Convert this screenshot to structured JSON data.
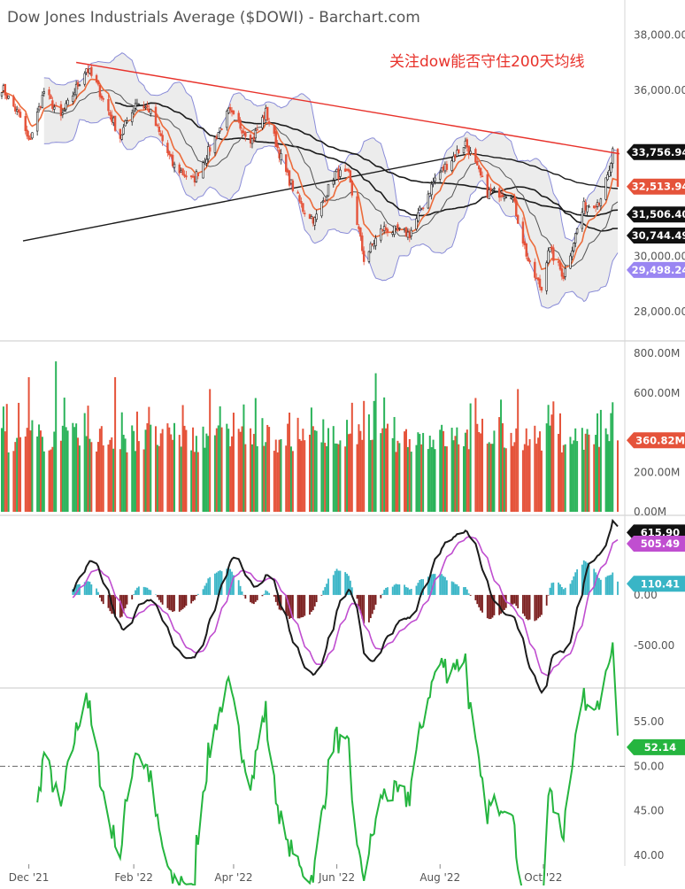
{
  "chart_title": "Dow Jones Industrials Average ($DOWI) - Barchart.com",
  "annotation": "关注dow能否守住200天均线",
  "x_tick_labels": [
    "Dec '21",
    "Feb '22",
    "Apr '22",
    "Jun '22",
    "Aug '22",
    "Oct '22"
  ],
  "colors": {
    "up": "#2bb35a",
    "down": "#e5533a",
    "trendline": "#e8322b",
    "ma_black": "#1b1b1b",
    "ma_orange": "#ec6b3b",
    "band": "#8a8cd8",
    "macd_signal": "#c04ed0",
    "macd_hist_pos": "#39b5c6",
    "macd_hist_neg": "#7a1d1d",
    "rsi": "#25b53f"
  },
  "chart_data": [
    {
      "type": "candlestick",
      "name": "price",
      "y_ticks": [
        "38,000.00",
        "36,000.00",
        "30,000.00",
        "28,000.00"
      ],
      "ylim": [
        27000,
        39000
      ],
      "badges": [
        {
          "label": "33,756.94",
          "value": 33756.94,
          "color": "#111111"
        },
        {
          "label": "32,513.94",
          "value": 32513.94,
          "color": "#e5533a"
        },
        {
          "label": "31,506.40",
          "value": 31506.4,
          "color": "#111111"
        },
        {
          "label": "30,744.49",
          "value": 30744.49,
          "color": "#111111"
        },
        {
          "label": "29,498.24",
          "value": 29498.24,
          "color": "#9a86f2"
        }
      ],
      "trendline": [
        {
          "x": "2021-12-29",
          "y": 37000
        },
        {
          "x": "2022-11-15",
          "y": 33700
        }
      ],
      "anchors": [
        [
          "2021-11-15",
          36100
        ],
        [
          "2021-11-26",
          35000
        ],
        [
          "2021-12-01",
          34100
        ],
        [
          "2021-12-10",
          35950
        ],
        [
          "2021-12-20",
          35000
        ],
        [
          "2022-01-04",
          36800
        ],
        [
          "2022-01-10",
          36200
        ],
        [
          "2022-01-24",
          34300
        ],
        [
          "2022-02-02",
          35600
        ],
        [
          "2022-02-10",
          35300
        ],
        [
          "2022-02-24",
          33300
        ],
        [
          "2022-03-08",
          32700
        ],
        [
          "2022-03-29",
          35200
        ],
        [
          "2022-04-12",
          34200
        ],
        [
          "2022-04-20",
          35200
        ],
        [
          "2022-05-02",
          33000
        ],
        [
          "2022-05-12",
          31700
        ],
        [
          "2022-05-19",
          31300
        ],
        [
          "2022-05-31",
          33000
        ],
        [
          "2022-06-08",
          32900
        ],
        [
          "2022-06-17",
          29900
        ],
        [
          "2022-06-28",
          31000
        ],
        [
          "2022-07-14",
          30800
        ],
        [
          "2022-07-29",
          32800
        ],
        [
          "2022-08-16",
          34100
        ],
        [
          "2022-08-29",
          32300
        ],
        [
          "2022-09-12",
          32300
        ],
        [
          "2022-09-23",
          29600
        ],
        [
          "2022-09-30",
          28800
        ],
        [
          "2022-10-04",
          30300
        ],
        [
          "2022-10-13",
          29300
        ],
        [
          "2022-10-25",
          31800
        ],
        [
          "2022-11-03",
          32000
        ],
        [
          "2022-11-09",
          33000
        ],
        [
          "2022-11-11",
          33750
        ],
        [
          "2022-11-14",
          32513.94
        ]
      ]
    },
    {
      "type": "bar",
      "name": "volume",
      "y_ticks": [
        "800.00M",
        "600.00M",
        "200.00M",
        "0.00M"
      ],
      "ylim": [
        0,
        850
      ],
      "unit": "M",
      "badge": {
        "label": "360.82M",
        "value": 360.82
      },
      "spikes": [
        [
          "2021-12-17",
          760
        ],
        [
          "2021-12-01",
          680
        ],
        [
          "2022-01-21",
          680
        ],
        [
          "2022-03-18",
          620
        ],
        [
          "2022-06-24",
          700
        ],
        [
          "2022-09-16",
          620
        ]
      ]
    },
    {
      "type": "line",
      "name": "macd",
      "y_ticks": [
        "0.00",
        "-500.00"
      ],
      "ylim": [
        -900,
        750
      ],
      "badges": [
        {
          "label": "615.90",
          "value": 615.9,
          "color": "#111111"
        },
        {
          "label": "505.49",
          "value": 505.49,
          "color": "#c04ed0"
        },
        {
          "label": "110.41",
          "value": 110.41,
          "color": "#39b5c6"
        }
      ]
    },
    {
      "type": "line",
      "name": "rsi",
      "y_ticks": [
        "55.00",
        "50.00",
        "45.00",
        "40.00"
      ],
      "ylim": [
        39,
        58.5
      ],
      "reference_line": 50,
      "badge": {
        "label": "52.14",
        "value": 52.14
      }
    }
  ]
}
